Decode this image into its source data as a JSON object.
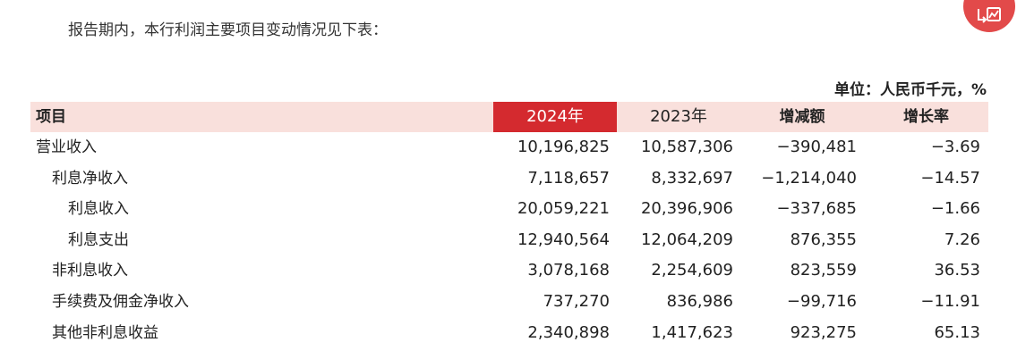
{
  "intro_text": "报告期内，本行利润主要项目变动情况见下表：",
  "unit_text": "单位：人民币千元，%",
  "fab_icon": "report-chart-icon",
  "accent_color": "#d42a2f",
  "header_bg_color": "#f9e0dc",
  "table": {
    "headers": {
      "item": "项目",
      "y2024": "2024年",
      "y2023": "2023年",
      "diff": "增减额",
      "rate": "增长率"
    },
    "rows": [
      {
        "label": "营业收入",
        "v2024": "10,196,825",
        "v2023": "10,587,306",
        "diff": "−390,481",
        "rate": "−3.69"
      },
      {
        "label": "利息净收入",
        "v2024": "7,118,657",
        "v2023": "8,332,697",
        "diff": "−1,214,040",
        "rate": "−14.57"
      },
      {
        "label": "利息收入",
        "v2024": "20,059,221",
        "v2023": "20,396,906",
        "diff": "−337,685",
        "rate": "−1.66"
      },
      {
        "label": "利息支出",
        "v2024": "12,940,564",
        "v2023": "12,064,209",
        "diff": "876,355",
        "rate": "7.26"
      },
      {
        "label": "非利息收入",
        "v2024": "3,078,168",
        "v2023": "2,254,609",
        "diff": "823,559",
        "rate": "36.53"
      },
      {
        "label": "手续费及佣金净收入",
        "v2024": "737,270",
        "v2023": "836,986",
        "diff": "−99,716",
        "rate": "−11.91"
      },
      {
        "label": "其他非利息收益",
        "v2024": "2,340,898",
        "v2023": "1,417,623",
        "diff": "923,275",
        "rate": "65.13"
      }
    ]
  }
}
